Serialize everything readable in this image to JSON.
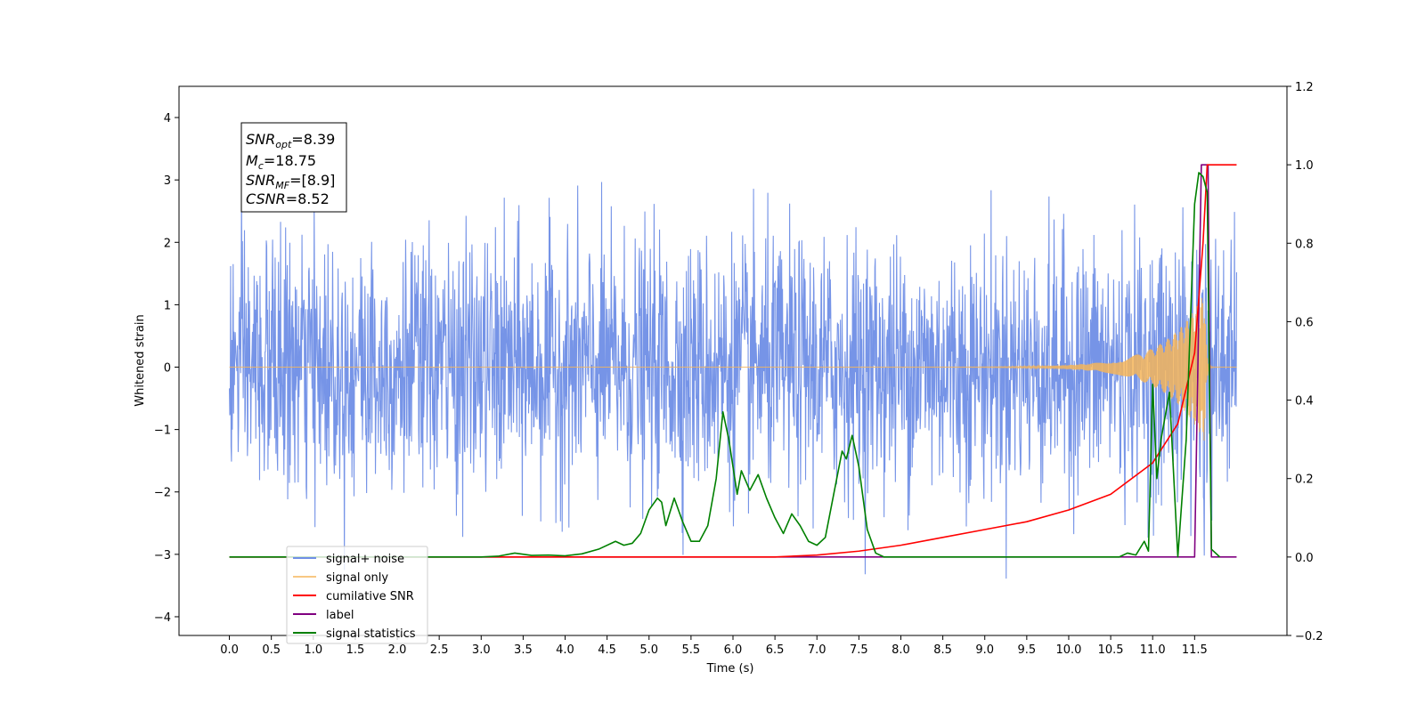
{
  "chart_data": {
    "type": "line",
    "xlabel": "Time (s)",
    "ylabel": "Whitened strain",
    "xlim": [
      -0.6,
      12.6
    ],
    "ylim": [
      -4.3,
      4.5
    ],
    "ylim_right": [
      -0.2,
      1.2
    ],
    "x_ticks": [
      "0.0",
      "0.5",
      "1.0",
      "1.5",
      "2.0",
      "2.5",
      "3.0",
      "3.5",
      "4.0",
      "4.5",
      "5.0",
      "5.5",
      "6.0",
      "6.5",
      "7.0",
      "7.5",
      "8.0",
      "8.5",
      "9.0",
      "9.5",
      "10.0",
      "10.5",
      "11.0",
      "11.5"
    ],
    "y_ticks": [
      "4",
      "3",
      "2",
      "1",
      "0",
      "−1",
      "−2",
      "−3",
      "−4"
    ],
    "y2_ticks": [
      "1.2",
      "1.0",
      "0.8",
      "0.6",
      "0.4",
      "0.2",
      "0.0",
      "−0.2"
    ],
    "legend_position": "lower-left",
    "annotation": {
      "snr_opt": "=8.39",
      "mc": "=18.75",
      "snr_mf": "=[8.9]",
      "csnr": "=8.52"
    },
    "series": [
      {
        "name": "signal+ noise",
        "axis": "left",
        "color": "#6f8ee6",
        "description_noise_sigma": 1.0,
        "x_range": [
          0.0,
          12.0
        ]
      },
      {
        "name": "signal only",
        "axis": "left",
        "color": "#f5b55a",
        "x_range": [
          0.0,
          12.0
        ],
        "peak_amplitude": 1.2,
        "peak_time": 11.62
      },
      {
        "name": "cumilative SNR",
        "axis": "right",
        "color": "#ff0000",
        "x": [
          0.0,
          6.5,
          7.0,
          7.5,
          8.0,
          8.5,
          9.0,
          9.5,
          10.0,
          10.5,
          11.0,
          11.3,
          11.5,
          11.6,
          11.65,
          11.7,
          12.0
        ],
        "y": [
          0.0,
          0.0,
          0.005,
          0.015,
          0.03,
          0.05,
          0.07,
          0.09,
          0.12,
          0.16,
          0.24,
          0.34,
          0.52,
          0.8,
          1.0,
          1.0,
          1.0
        ]
      },
      {
        "name": "label",
        "axis": "right",
        "color": "#800080",
        "x": [
          0.0,
          11.5,
          11.58,
          11.66,
          11.7,
          12.0
        ],
        "y": [
          0.0,
          0.0,
          1.0,
          1.0,
          0.0,
          0.0
        ]
      },
      {
        "name": "signal statistics",
        "axis": "right",
        "color": "#008000",
        "x": [
          0.0,
          3.0,
          3.2,
          3.4,
          3.6,
          3.8,
          4.0,
          4.2,
          4.4,
          4.6,
          4.7,
          4.8,
          4.9,
          5.0,
          5.1,
          5.15,
          5.2,
          5.3,
          5.4,
          5.5,
          5.6,
          5.7,
          5.8,
          5.88,
          5.95,
          6.05,
          6.1,
          6.2,
          6.3,
          6.4,
          6.5,
          6.6,
          6.7,
          6.8,
          6.9,
          7.0,
          7.1,
          7.2,
          7.3,
          7.35,
          7.42,
          7.5,
          7.6,
          7.7,
          7.8,
          8.0,
          10.6,
          10.7,
          10.8,
          10.9,
          10.95,
          11.0,
          11.05,
          11.1,
          11.2,
          11.3,
          11.4,
          11.5,
          11.55,
          11.6,
          11.65,
          11.7,
          11.8
        ],
        "y": [
          0.0,
          0.0,
          0.002,
          0.01,
          0.004,
          0.005,
          0.003,
          0.008,
          0.02,
          0.04,
          0.03,
          0.035,
          0.06,
          0.12,
          0.15,
          0.14,
          0.08,
          0.15,
          0.09,
          0.04,
          0.04,
          0.08,
          0.2,
          0.37,
          0.3,
          0.16,
          0.22,
          0.17,
          0.21,
          0.15,
          0.1,
          0.06,
          0.11,
          0.08,
          0.04,
          0.03,
          0.05,
          0.16,
          0.27,
          0.25,
          0.31,
          0.23,
          0.07,
          0.01,
          0.0,
          0.0,
          0.0,
          0.01,
          0.005,
          0.04,
          0.015,
          0.44,
          0.2,
          0.3,
          0.42,
          0.0,
          0.3,
          0.9,
          0.98,
          0.97,
          0.93,
          0.02,
          0.0
        ]
      }
    ]
  }
}
